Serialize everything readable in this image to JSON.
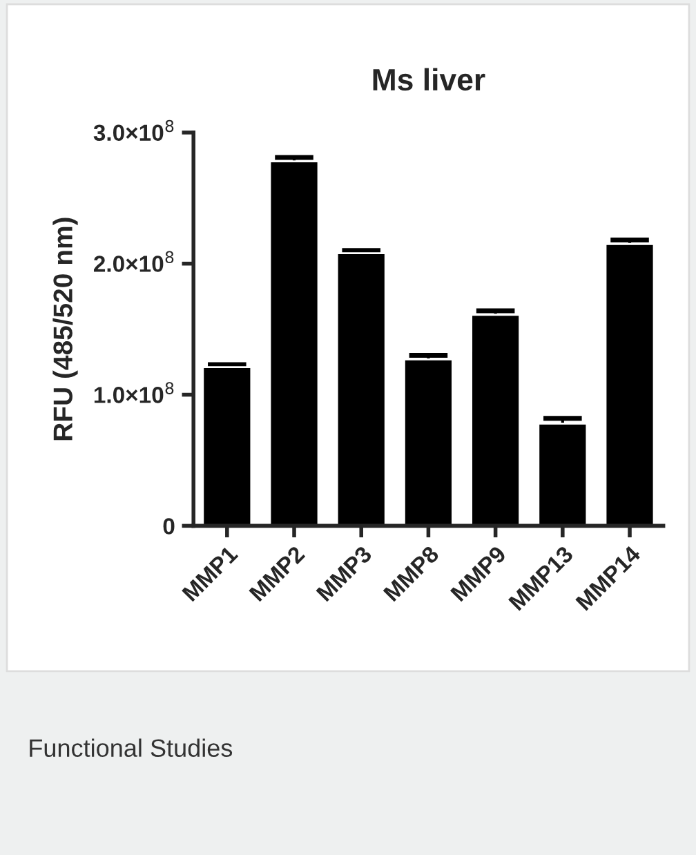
{
  "chart_data": {
    "type": "bar",
    "title": "Ms liver",
    "ylabel": "RFU (485/520 nm)",
    "categories": [
      "MMP1",
      "MMP2",
      "MMP3",
      "MMP8",
      "MMP9",
      "MMP13",
      "MMP14"
    ],
    "values": [
      121000000,
      278000000,
      208000000,
      127000000,
      161000000,
      78000000,
      215000000
    ],
    "errors": [
      2000000,
      3000000,
      2000000,
      3000000,
      3000000,
      4000000,
      3000000
    ],
    "color": "#000000",
    "ylim": [
      0,
      300000000
    ],
    "yticks": [
      0,
      {
        "value": 100000000,
        "label": "1.0×10$^{8}$"
      },
      {
        "value": 200000000,
        "label": "2.0×10$^{8}$"
      },
      {
        "value": 300000000,
        "label": "3.0×10$^{8}$"
      }
    ],
    "grid": false,
    "annotations": [
      "Functional Studies"
    ]
  }
}
